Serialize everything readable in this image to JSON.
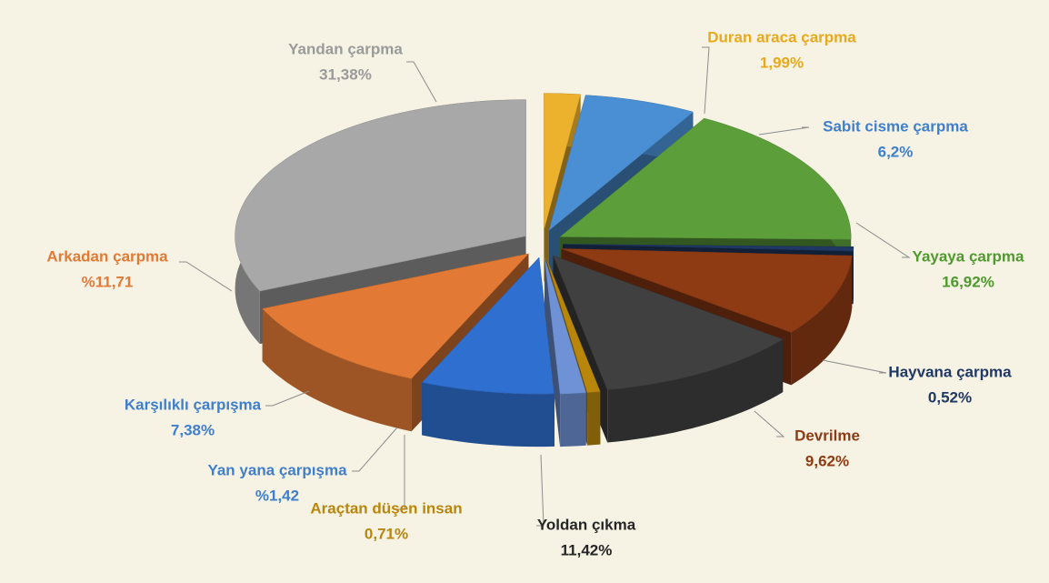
{
  "chart_data": {
    "type": "pie3d",
    "categories": [
      "Duran araca çarpma",
      "Sabit cisme çarpma",
      "Yayaya çarpma",
      "Hayvana çarpma",
      "Devrilme",
      "Yoldan çıkma",
      "Araçtan düşen insan",
      "Yan yana çarpışma",
      "Karşılıklı çarpışma",
      "Arkadan çarpma",
      "Yandan çarpma"
    ],
    "values": [
      1.99,
      6.2,
      16.92,
      0.52,
      9.62,
      11.42,
      0.71,
      1.42,
      7.38,
      11.71,
      31.38
    ],
    "value_labels": [
      "1,99%",
      "6,2%",
      "16,92%",
      "0,52%",
      "9,62%",
      "11,42%",
      "0,71%",
      "%1,42",
      "7,38%",
      "%11,71",
      "31,38%"
    ],
    "colors": [
      "#ecb22e",
      "#4a8fd4",
      "#5b9e3a",
      "#1f3864",
      "#8e3b14",
      "#404040",
      "#b8860b",
      "#6f92d6",
      "#2f6fcf",
      "#e27a35",
      "#a8a8a8"
    ],
    "label_colors": [
      "#e8a91c",
      "#3f7fcc",
      "#4f9a2e",
      "#1f3864",
      "#8e3b14",
      "#262626",
      "#b8860b",
      "#3f7fcc",
      "#3f7fcc",
      "#e27a35",
      "#9a9a9a"
    ],
    "start_angle": 0,
    "direction": "clockwise",
    "exploded": true
  }
}
